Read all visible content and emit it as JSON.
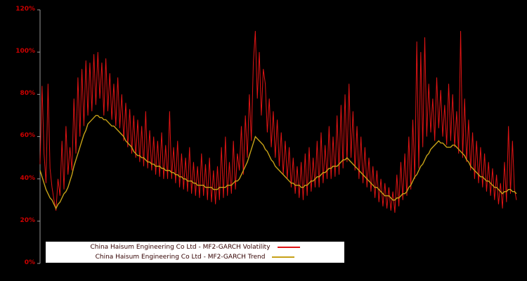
{
  "chart_data": {
    "type": "line",
    "title": "",
    "background": "#000000",
    "grid": false,
    "unit": "%",
    "y_axis": {
      "min": 0,
      "max": 120,
      "tick_values": [
        0,
        20,
        40,
        60,
        80,
        100,
        120
      ],
      "tick_labels": [
        "0%",
        "20%",
        "40%",
        "60%",
        "80%",
        "100%",
        "120%"
      ],
      "label_color": "#cc0000",
      "axis_color": "#999999"
    },
    "x_axis": {
      "tick_labels": []
    },
    "legend": {
      "position": "bottom-center",
      "background": "#ffffff",
      "entries": [
        {
          "label": "China Haisum Engineering Co Ltd - MF2-GARCH Volatility",
          "color": "#e01414"
        },
        {
          "label": "China Haisum Engineering Co Ltd - MF2-GARCH Trend",
          "color": "#c6a117"
        }
      ]
    },
    "series": [
      {
        "name": "China Haisum Engineering Co Ltd - MF2-GARCH Volatility",
        "color": "#e01414",
        "line_width": 1,
        "values": [
          47,
          84,
          52,
          38,
          85,
          45,
          36,
          30,
          25,
          40,
          32,
          58,
          35,
          65,
          42,
          55,
          44,
          78,
          52,
          88,
          60,
          92,
          65,
          96,
          70,
          95,
          72,
          99,
          75,
          100,
          78,
          95,
          70,
          97,
          72,
          90,
          68,
          85,
          65,
          88,
          64,
          80,
          58,
          76,
          55,
          73,
          52,
          70,
          50,
          68,
          48,
          65,
          46,
          72,
          45,
          63,
          44,
          60,
          42,
          58,
          41,
          62,
          40,
          56,
          40,
          72,
          40,
          55,
          38,
          58,
          36,
          52,
          35,
          50,
          34,
          55,
          33,
          48,
          32,
          46,
          31,
          52,
          32,
          47,
          30,
          50,
          29,
          44,
          28,
          46,
          30,
          55,
          31,
          60,
          32,
          48,
          33,
          58,
          35,
          52,
          44,
          65,
          42,
          70,
          50,
          80,
          58,
          95,
          110,
          78,
          100,
          70,
          92,
          85,
          62,
          78,
          55,
          72,
          50,
          68,
          46,
          62,
          42,
          58,
          40,
          55,
          36,
          50,
          33,
          46,
          31,
          48,
          30,
          52,
          32,
          55,
          34,
          50,
          36,
          58,
          36,
          62,
          38,
          56,
          40,
          65,
          40,
          60,
          41,
          70,
          42,
          75,
          45,
          80,
          48,
          85,
          50,
          72,
          44,
          65,
          40,
          60,
          38,
          55,
          36,
          50,
          34,
          46,
          31,
          44,
          29,
          40,
          27,
          38,
          26,
          36,
          25,
          34,
          24,
          42,
          27,
          48,
          30,
          52,
          32,
          60,
          35,
          68,
          40,
          105,
          45,
          100,
          55,
          107,
          60,
          85,
          62,
          78,
          58,
          88,
          64,
          82,
          60,
          75,
          56,
          85,
          58,
          80,
          55,
          72,
          52,
          110,
          50,
          78,
          48,
          68,
          44,
          62,
          40,
          58,
          38,
          55,
          36,
          52,
          34,
          48,
          32,
          45,
          30,
          42,
          28,
          38,
          26,
          48,
          29,
          65,
          33,
          58,
          35,
          30
        ]
      },
      {
        "name": "China Haisum Engineering Co Ltd - MF2-GARCH Trend",
        "color": "#c6a117",
        "line_width": 1.4,
        "values": [
          44,
          41,
          38,
          35,
          33,
          31,
          30,
          28,
          26,
          28,
          29,
          31,
          33,
          34,
          36,
          39,
          42,
          46,
          49,
          52,
          55,
          58,
          61,
          63,
          66,
          67,
          68,
          69,
          70,
          70,
          69,
          69,
          68,
          68,
          67,
          66,
          65,
          65,
          64,
          63,
          62,
          61,
          60,
          58,
          57,
          56,
          55,
          53,
          52,
          51,
          51,
          50,
          50,
          49,
          48,
          48,
          47,
          47,
          46,
          46,
          46,
          45,
          45,
          44,
          44,
          44,
          43,
          43,
          42,
          42,
          41,
          41,
          40,
          40,
          39,
          39,
          39,
          38,
          38,
          37,
          37,
          37,
          37,
          36,
          36,
          36,
          36,
          35,
          35,
          35,
          36,
          36,
          36,
          36,
          37,
          37,
          37,
          38,
          39,
          39,
          40,
          42,
          44,
          46,
          48,
          51,
          54,
          57,
          60,
          59,
          58,
          57,
          56,
          54,
          53,
          51,
          49,
          48,
          46,
          45,
          44,
          43,
          42,
          41,
          40,
          39,
          38,
          38,
          37,
          37,
          37,
          36,
          36,
          37,
          37,
          38,
          39,
          39,
          40,
          41,
          41,
          42,
          43,
          43,
          44,
          45,
          45,
          46,
          46,
          46,
          47,
          48,
          49,
          49,
          50,
          49,
          48,
          47,
          46,
          45,
          44,
          43,
          42,
          41,
          40,
          39,
          38,
          37,
          36,
          36,
          35,
          34,
          33,
          32,
          32,
          32,
          31,
          30,
          30,
          31,
          31,
          32,
          33,
          33,
          34,
          36,
          37,
          39,
          41,
          42,
          44,
          46,
          47,
          49,
          51,
          52,
          54,
          55,
          56,
          57,
          58,
          57,
          57,
          56,
          55,
          55,
          55,
          56,
          56,
          55,
          54,
          53,
          52,
          51,
          49,
          48,
          46,
          45,
          44,
          43,
          42,
          41,
          41,
          40,
          39,
          39,
          38,
          37,
          36,
          36,
          35,
          34,
          33,
          34,
          34,
          35,
          35,
          34,
          34,
          33
        ]
      }
    ]
  }
}
